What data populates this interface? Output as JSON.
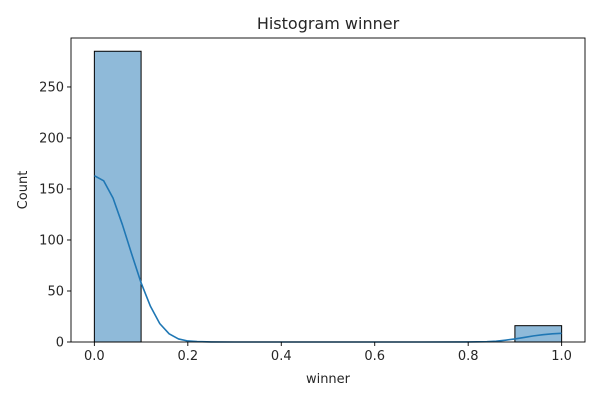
{
  "chart_data": {
    "type": "bar",
    "title": "Histogram winner",
    "xlabel": "winner",
    "ylabel": "Count",
    "xlim": [
      -0.05,
      1.05
    ],
    "ylim": [
      0,
      298
    ],
    "x_ticks": [
      0.0,
      0.2,
      0.4,
      0.6,
      0.8,
      1.0
    ],
    "x_tick_labels": [
      "0.0",
      "0.2",
      "0.4",
      "0.6",
      "0.8",
      "1.0"
    ],
    "y_ticks": [
      0,
      50,
      100,
      150,
      200,
      250
    ],
    "y_tick_labels": [
      "0",
      "50",
      "100",
      "150",
      "200",
      "250"
    ],
    "bins": [
      {
        "x0": 0.0,
        "x1": 0.1,
        "count": 285
      },
      {
        "x0": 0.9,
        "x1": 1.0,
        "count": 16
      }
    ],
    "kde": {
      "x": [
        0.0,
        0.02,
        0.04,
        0.06,
        0.08,
        0.1,
        0.12,
        0.14,
        0.16,
        0.18,
        0.2,
        0.22,
        0.25,
        0.3,
        0.4,
        0.5,
        0.6,
        0.7,
        0.8,
        0.84,
        0.86,
        0.88,
        0.9,
        0.92,
        0.94,
        0.96,
        0.98,
        1.0
      ],
      "y": [
        163,
        158,
        141,
        115,
        86,
        58,
        35,
        18,
        8,
        3,
        1,
        0.4,
        0.1,
        0,
        0,
        0,
        0,
        0,
        0.1,
        0.3,
        0.8,
        1.8,
        3,
        4.5,
        6,
        7.2,
        8,
        8.5
      ]
    },
    "grid": false,
    "legend": "none",
    "colors": {
      "bar_fill": "#8fbad9",
      "bar_edge": "#000000",
      "kde_line": "#1f77b4",
      "axis": "#000000",
      "text": "#262626"
    }
  }
}
